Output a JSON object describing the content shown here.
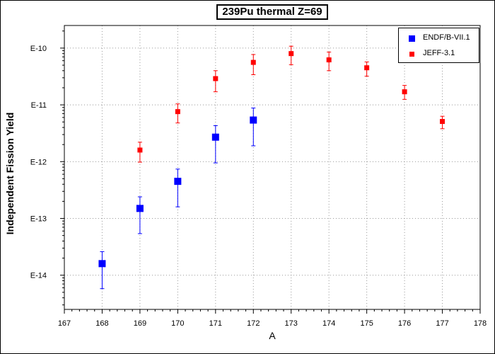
{
  "chart_data": {
    "type": "scatter",
    "title": "239Pu thermal Z=69",
    "xlabel": "A",
    "ylabel": "Independent Fission Yield",
    "xlim": [
      167,
      178
    ],
    "ylim": [
      2.5e-15,
      2.5e-10
    ],
    "y_scale": "log",
    "x_ticks": [
      "167",
      "168",
      "169",
      "170",
      "171",
      "172",
      "173",
      "174",
      "175",
      "176",
      "177",
      "178"
    ],
    "y_ticks": [
      {
        "value": 1e-10,
        "label": "E-10"
      },
      {
        "value": 1e-11,
        "label": "E-11"
      },
      {
        "value": 1e-12,
        "label": "E-12"
      },
      {
        "value": 1e-13,
        "label": "E-13"
      },
      {
        "value": 1e-14,
        "label": "E-14"
      }
    ],
    "grid": true,
    "legend_position": "top-right",
    "series": [
      {
        "name": "ENDF/B-VII.1",
        "color": "#0000ff",
        "marker": "square-large",
        "points": [
          {
            "x": 168,
            "y": 1.6e-14,
            "ylow": 5.8e-15,
            "yhigh": 2.6e-14
          },
          {
            "x": 169,
            "y": 1.5e-13,
            "ylow": 5.4e-14,
            "yhigh": 2.4e-13
          },
          {
            "x": 170,
            "y": 4.5e-13,
            "ylow": 1.6e-13,
            "yhigh": 7.4e-13
          },
          {
            "x": 171,
            "y": 2.7e-12,
            "ylow": 9.5e-13,
            "yhigh": 4.3e-12
          },
          {
            "x": 172,
            "y": 5.4e-12,
            "ylow": 1.9e-12,
            "yhigh": 8.8e-12
          }
        ]
      },
      {
        "name": "JEFF-3.1",
        "color": "#ff0000",
        "marker": "square-small",
        "points": [
          {
            "x": 169,
            "y": 1.6e-12,
            "ylow": 9.8e-13,
            "yhigh": 2.2e-12
          },
          {
            "x": 170,
            "y": 7.6e-12,
            "ylow": 4.8e-12,
            "yhigh": 1.04e-11
          },
          {
            "x": 171,
            "y": 2.9e-11,
            "ylow": 1.7e-11,
            "yhigh": 4e-11
          },
          {
            "x": 172,
            "y": 5.6e-11,
            "ylow": 3.4e-11,
            "yhigh": 7.7e-11
          },
          {
            "x": 173,
            "y": 8e-11,
            "ylow": 5.1e-11,
            "yhigh": 1.08e-10
          },
          {
            "x": 174,
            "y": 6.2e-11,
            "ylow": 4e-11,
            "yhigh": 8.5e-11
          },
          {
            "x": 175,
            "y": 4.5e-11,
            "ylow": 3.2e-11,
            "yhigh": 5.7e-11
          },
          {
            "x": 176,
            "y": 1.7e-11,
            "ylow": 1.25e-11,
            "yhigh": 2.2e-11
          },
          {
            "x": 177,
            "y": 5.1e-12,
            "ylow": 3.8e-12,
            "yhigh": 6.3e-12
          }
        ]
      }
    ]
  }
}
